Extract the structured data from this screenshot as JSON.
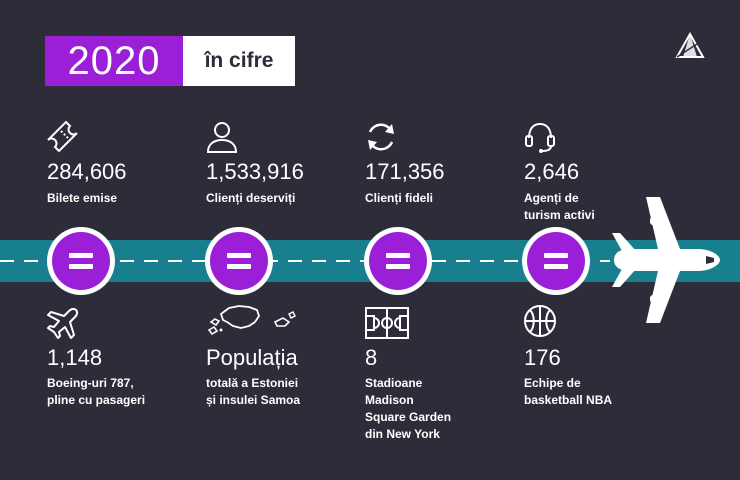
{
  "header": {
    "year": "2020",
    "subtitle": "în cifre"
  },
  "colors": {
    "background": "#2d2d3a",
    "accent": "#9b1fd6",
    "runway": "#177f8e",
    "text": "#ffffff"
  },
  "stats_top": [
    {
      "icon": "ticket-icon",
      "value": "284,606",
      "label": "Bilete emise"
    },
    {
      "icon": "user-icon",
      "value": "1,533,916",
      "label": "Clienți deserviți"
    },
    {
      "icon": "refresh-icon",
      "value": "171,356",
      "label": "Clienți fideli"
    },
    {
      "icon": "headset-icon",
      "value": "2,646",
      "label": "Agenți de\nturism activi"
    }
  ],
  "stats_bottom": [
    {
      "icon": "airplane-icon",
      "value": "1,148",
      "label": "Boeing-uri 787,\npline cu pasageri"
    },
    {
      "icon": "map-icon",
      "value": "Populația",
      "label": "totală a Estoniei\nși insulei Samoa"
    },
    {
      "icon": "court-icon",
      "value": "8",
      "label": "Stadioane\nMadison\nSquare Garden\ndin New York"
    },
    {
      "icon": "basketball-icon",
      "value": "176",
      "label": "Echipe de\nbasketball NBA"
    }
  ]
}
